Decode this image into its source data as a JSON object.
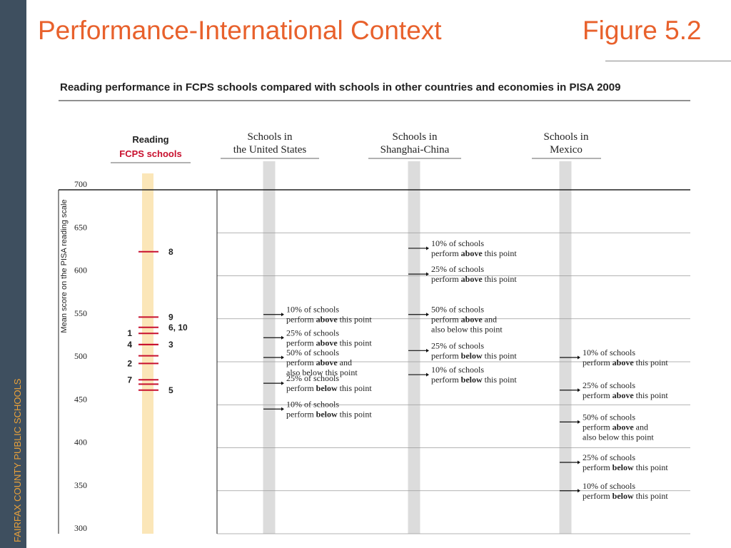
{
  "slide": {
    "title": "Performance-International Context",
    "figure_label": "Figure 5.2",
    "sidebar_text": "FAIRFAX COUNTY PUBLIC SCHOOLS"
  },
  "colors": {
    "title": "#e8612c",
    "sidebar_bg": "#3e4f5f",
    "sidebar_text": "#e9a13a",
    "fcps_band": "#fbe6b8",
    "country_band": "#dcdcdc",
    "fcps_marker": "#c8102e",
    "fcps_label": "#c8102e"
  },
  "chart_data": {
    "type": "scatter",
    "title": "Reading performance in FCPS schools compared with schools in other countries and economies in PISA 2009",
    "ylabel": "Mean score on the PISA reading scale",
    "ylim": [
      300,
      700
    ],
    "yticks": [
      700,
      650,
      600,
      550,
      500,
      450,
      400,
      350,
      300
    ],
    "grid": true,
    "columns": [
      {
        "id": "fcps",
        "header_line1": "Reading",
        "header_line2": "FCPS schools"
      },
      {
        "id": "us",
        "header_line1": "Schools in",
        "header_line2": "the United States"
      },
      {
        "id": "shanghai",
        "header_line1": "Schools in",
        "header_line2": "Shanghai-China"
      },
      {
        "id": "mexico",
        "header_line1": "Schools in",
        "header_line2": "Mexico"
      }
    ],
    "fcps_schools": [
      {
        "label": "8",
        "score": 628,
        "side": "right"
      },
      {
        "label": "9",
        "score": 552,
        "side": "right"
      },
      {
        "label": "6, 10",
        "score": 540,
        "side": "right"
      },
      {
        "label": "1",
        "score": 533,
        "side": "left"
      },
      {
        "label": "4",
        "score": 520,
        "side": "left"
      },
      {
        "label": "3",
        "score": 520,
        "side": "right"
      },
      {
        "label": "",
        "score": 507,
        "side": "none"
      },
      {
        "label": "2",
        "score": 498,
        "side": "left"
      },
      {
        "label": "7",
        "score": 479,
        "side": "left"
      },
      {
        "label": "5",
        "score": 467,
        "side": "right"
      },
      {
        "label": "",
        "score": 474,
        "side": "none"
      }
    ],
    "percentiles": [
      {
        "column": "us",
        "points": [
          {
            "score": 555,
            "line1_pre": "10% of schools",
            "line1_bold": "",
            "line2_pre": "perform ",
            "line2_bold": "above",
            "line2_post": " this point",
            "line3": ""
          },
          {
            "score": 528,
            "line1_pre": "25% of schools",
            "line1_bold": "",
            "line2_pre": "perform ",
            "line2_bold": "above",
            "line2_post": " this point",
            "line3": ""
          },
          {
            "score": 505,
            "line1_pre": "50% of schools",
            "line1_bold": "",
            "line2_pre": "perform ",
            "line2_bold": "above",
            "line2_post": " and",
            "line3": "also below this point"
          },
          {
            "score": 475,
            "line1_pre": "25% of schools",
            "line1_bold": "",
            "line2_pre": "perform ",
            "line2_bold": "below",
            "line2_post": " this point",
            "line3": ""
          },
          {
            "score": 445,
            "line1_pre": "10% of schools",
            "line1_bold": "",
            "line2_pre": "perform ",
            "line2_bold": "below",
            "line2_post": " this point",
            "line3": ""
          }
        ]
      },
      {
        "column": "shanghai",
        "points": [
          {
            "score": 632,
            "line1_pre": "10% of schools",
            "line1_bold": "",
            "line2_pre": "perform ",
            "line2_bold": "above",
            "line2_post": " this point",
            "line3": ""
          },
          {
            "score": 602,
            "line1_pre": "25% of schools",
            "line1_bold": "",
            "line2_pre": "perform ",
            "line2_bold": "above",
            "line2_post": " this point",
            "line3": ""
          },
          {
            "score": 555,
            "line1_pre": "50% of schools",
            "line1_bold": "",
            "line2_pre": "perform ",
            "line2_bold": "above",
            "line2_post": " and",
            "line3": "also below this point"
          },
          {
            "score": 513,
            "line1_pre": "25% of schools",
            "line1_bold": "",
            "line2_pre": "perform ",
            "line2_bold": "below",
            "line2_post": " this point",
            "line3": ""
          },
          {
            "score": 485,
            "line1_pre": "10% of schools",
            "line1_bold": "",
            "line2_pre": "perform ",
            "line2_bold": "below",
            "line2_post": " this point",
            "line3": ""
          }
        ]
      },
      {
        "column": "mexico",
        "points": [
          {
            "score": 505,
            "line1_pre": "10% of schools",
            "line1_bold": "",
            "line2_pre": "perform ",
            "line2_bold": "above",
            "line2_post": " this point",
            "line3": ""
          },
          {
            "score": 467,
            "line1_pre": "25% of schools",
            "line1_bold": "",
            "line2_pre": "perform ",
            "line2_bold": "above",
            "line2_post": " this point",
            "line3": ""
          },
          {
            "score": 430,
            "line1_pre": "50% of schools",
            "line1_bold": "",
            "line2_pre": "perform ",
            "line2_bold": "above",
            "line2_post": " and",
            "line3": "also below this point"
          },
          {
            "score": 383,
            "line1_pre": "25% of schools",
            "line1_bold": "",
            "line2_pre": "perform ",
            "line2_bold": "below",
            "line2_post": " this point",
            "line3": ""
          },
          {
            "score": 350,
            "line1_pre": "10% of schools",
            "line1_bold": "",
            "line2_pre": "perform ",
            "line2_bold": "below",
            "line2_post": " this point",
            "line3": ""
          }
        ]
      }
    ]
  }
}
